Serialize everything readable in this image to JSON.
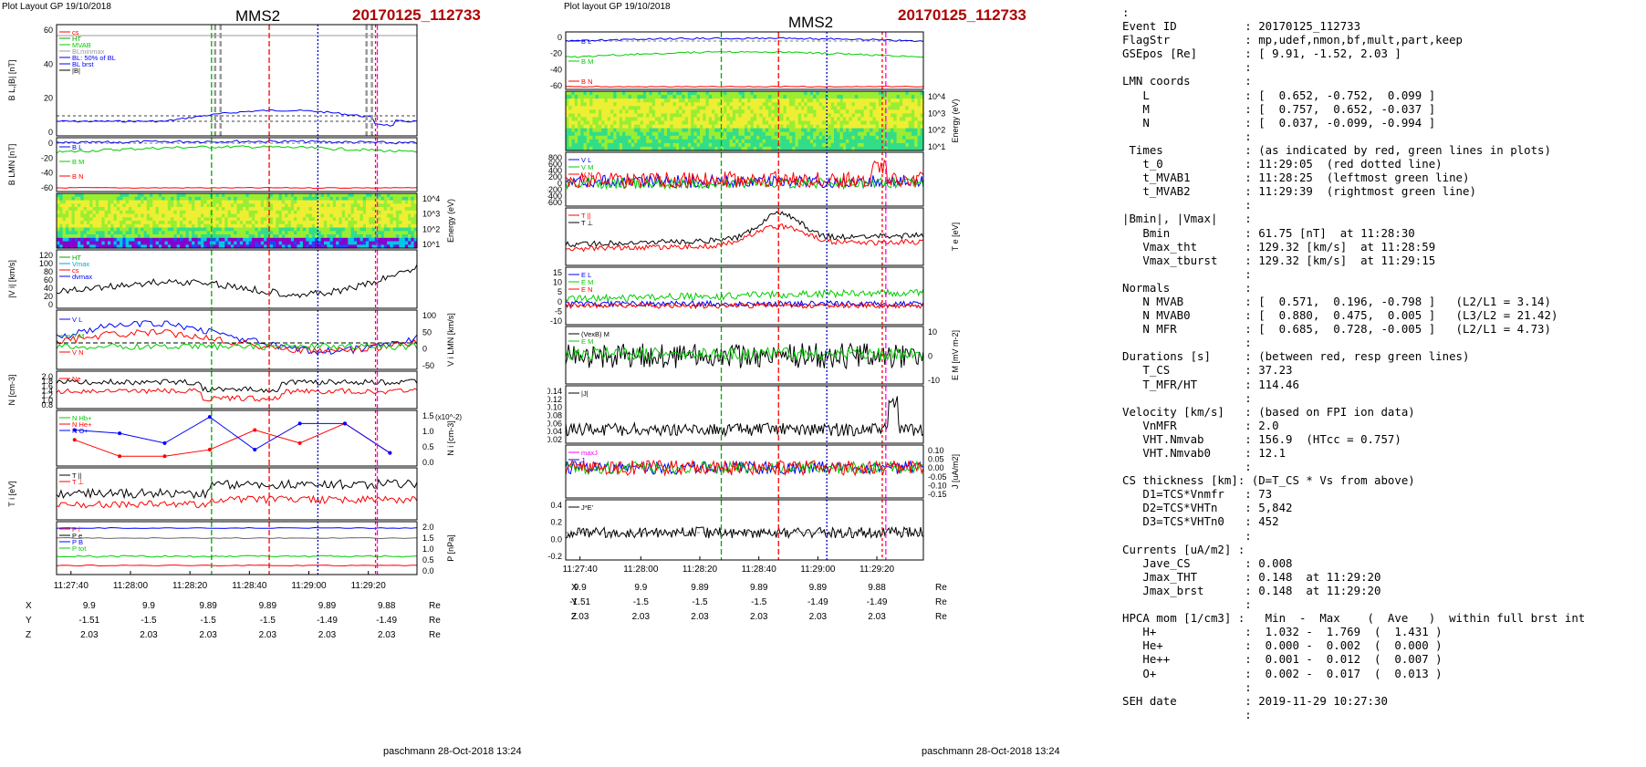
{
  "left": {
    "header": "Plot Layout GP 19/10/2018",
    "title": "MMS2",
    "event": "20170125_112733",
    "footer": "paschmann 28-Oct-2018 13:24",
    "time_ticks": [
      "11:27:40",
      "11:28:00",
      "11:28:20",
      "11:28:40",
      "11:29:00",
      "11:29:20"
    ],
    "coords": {
      "labels": [
        "X",
        "Y",
        "Z"
      ],
      "unit": "Re",
      "X": [
        "9.9",
        "9.9",
        "9.89",
        "9.89",
        "9.89",
        "9.88"
      ],
      "Y": [
        "-1.51",
        "-1.5",
        "-1.5",
        "-1.5",
        "-1.49",
        "-1.49"
      ],
      "Z": [
        "2.03",
        "2.03",
        "2.03",
        "2.03",
        "2.03",
        "2.03"
      ]
    },
    "panels": [
      {
        "ylabel": "B_L,|B| [nT]",
        "ticks": [
          "60",
          "40",
          "20",
          "0"
        ],
        "legend": [
          "cs",
          "HT",
          "MVAB",
          "BLminmax",
          "BL: 50% of BL",
          "BL_ brst",
          "|B|"
        ]
      },
      {
        "ylabel": "B_LMN [nT]",
        "ticks": [
          "0",
          "-20",
          "-40",
          "-60"
        ],
        "legend": [
          "B_L",
          "B_M",
          "B_N"
        ]
      },
      {
        "ylabel": "Energy (eV)",
        "ticks": [
          "10^4",
          "10^3",
          "10^2",
          "10^1"
        ],
        "legend": []
      },
      {
        "ylabel": "|V_i| [km/s]",
        "ticks": [
          "120",
          "100",
          "80",
          "60",
          "40",
          "20",
          "0"
        ],
        "legend": [
          "HT",
          "Vmax",
          "cs",
          "dvmax"
        ]
      },
      {
        "ylabel": "V_i LMN [km/s]",
        "ticks": [
          "100",
          "50",
          "0",
          "-50"
        ],
        "legend": [
          "V_L",
          "V_M",
          "V_N"
        ]
      },
      {
        "ylabel": "N [cm^-3]",
        "ticks": [
          "2.0",
          "1.8",
          "1.6",
          "1.4",
          "1.2",
          "1.0",
          "0.8"
        ],
        "legend": [
          "Ne"
        ]
      },
      {
        "ylabel": "N_i [cm^-3]",
        "ticks": [
          "1.5",
          "1.0",
          "0.5",
          "0.0"
        ],
        "legend": [
          "N_Hb+",
          "N_He+",
          "N_O+"
        ],
        "scale": "(x10^-2)"
      },
      {
        "ylabel": "T_i [eV]",
        "ticks": [],
        "legend": [
          "T_||",
          "T_⊥"
        ]
      },
      {
        "ylabel": "P [nPa]",
        "ticks": [
          "2.0",
          "1.5",
          "1.0",
          "0.5",
          "0.0"
        ],
        "legend": [
          "P_i",
          "P_e",
          "P_B",
          "P_tot"
        ]
      }
    ]
  },
  "middle": {
    "header": "Plot layout GP 19/10/2018",
    "title": "MMS2",
    "event": "20170125_112733",
    "footer": "paschmann 28-Oct-2018 13:24",
    "time_ticks": [
      "11:27:40",
      "11:28:00",
      "11:28:20",
      "11:28:40",
      "11:29:00",
      "11:29:20"
    ],
    "coords": {
      "labels": [
        "X",
        "Y",
        "Z"
      ],
      "unit": "Re",
      "X": [
        "9.9",
        "9.9",
        "9.89",
        "9.89",
        "9.89",
        "9.88"
      ],
      "Y": [
        "-1.51",
        "-1.5",
        "-1.5",
        "-1.5",
        "-1.49",
        "-1.49"
      ],
      "Z": [
        "2.03",
        "2.03",
        "2.03",
        "2.03",
        "2.03",
        "2.03"
      ]
    },
    "panels": [
      {
        "ylabel": "B_LMN [nT]",
        "ticks": [
          "0",
          "-20",
          "-40",
          "-60"
        ],
        "legend": [
          "B_L",
          "B_M",
          "B_N"
        ]
      },
      {
        "ylabel": "Energy (eV)",
        "ticks": [
          "10^4",
          "10^3",
          "10^2",
          "10^1"
        ],
        "legend": []
      },
      {
        "ylabel": "V_e LMN [km/s]",
        "ticks": [
          "800",
          "600",
          "400",
          "200",
          "0",
          "-200",
          "-400",
          "-600"
        ],
        "legend": [
          "V_L",
          "V_M",
          "V_N"
        ]
      },
      {
        "ylabel": "T_e [eV]",
        "ticks": [],
        "legend": [
          "T_||",
          "T_⊥"
        ]
      },
      {
        "ylabel": "E_LMN [mV m^-1]",
        "ticks": [
          "15",
          "10",
          "5",
          "0",
          "-5",
          "-10"
        ],
        "legend": [
          "E_L",
          "E_M",
          "E_N"
        ]
      },
      {
        "ylabel": "E_M [mV m^-2]",
        "ticks": [
          "10",
          "0",
          "-10"
        ],
        "legend": [
          "(VexB)_M",
          "E_M"
        ]
      },
      {
        "ylabel": "|J| [uA/m^2]",
        "ticks": [
          "0.14",
          "0.12",
          "0.10",
          "0.08",
          "0.06",
          "0.04",
          "0.02"
        ],
        "legend": [
          "|J|"
        ]
      },
      {
        "ylabel": "J [uA/m^2]",
        "ticks": [
          "0.10",
          "0.05",
          "0.00",
          "-0.05",
          "-0.10",
          "-0.15"
        ],
        "legend": [
          "maxJ",
          "J"
        ]
      },
      {
        "ylabel": "J*E' [nW m^-3]",
        "ticks": [
          "0.4",
          "0.2",
          "0.0",
          "-0.2"
        ],
        "legend": [
          "J*E'"
        ]
      }
    ]
  },
  "colors": {
    "L": "#0000ff",
    "M": "#00cc00",
    "N": "#ff0000",
    "black": "#000000",
    "gray": "#999999",
    "magenta": "#ff00ff",
    "green_line": "#00aa00",
    "red_line": "#ff0000",
    "blue_line": "#0000cc"
  },
  "info_lines": [
    ":",
    "Event ID          : 20170125_112733",
    "FlagStr           : mp,udef,nmon,bf,mult,part,keep",
    "GSEpos [Re]       : [ 9.91, -1.52, 2.03 ]",
    "                  :",
    "LMN coords        :",
    "   L              : [  0.652, -0.752,  0.099 ]",
    "   M              : [  0.757,  0.652, -0.037 ]",
    "   N              : [  0.037, -0.099, -0.994 ]",
    "                  :",
    " Times            : (as indicated by red, green lines in plots)",
    "   t_0            : 11:29:05  (red dotted line)",
    "   t_MVAB1        : 11:28:25  (leftmost green line)",
    "   t_MVAB2        : 11:29:39  (rightmost green line)",
    "                  :",
    "|Bmin|, |Vmax|    :",
    "   Bmin           : 61.75 [nT]  at 11:28:30",
    "   Vmax_tht       : 129.32 [km/s]  at 11:28:59",
    "   Vmax_tburst    : 129.32 [km/s]  at 11:29:15",
    "                  :",
    "Normals           :",
    "   N MVAB         : [  0.571,  0.196, -0.798 ]   (L2/L1 = 3.14)",
    "   N MVAB0        : [  0.880,  0.475,  0.005 ]   (L3/L2 = 21.42)",
    "   N MFR          : [  0.685,  0.728, -0.005 ]   (L2/L1 = 4.73)",
    "                  :",
    "Durations [s]     : (between red, resp green lines)",
    "   T_CS           : 37.23",
    "   T_MFR/HT       : 114.46",
    "                  :",
    "Velocity [km/s]   : (based on FPI ion data)",
    "   VnMFR          : 2.0",
    "   VHT.Nmvab      : 156.9  (HTcc = 0.757)",
    "   VHT.Nmvab0     : 12.1",
    "                  :",
    "CS thickness [km]: (D=T_CS * Vs from above)",
    "   D1=TCS*Vnmfr   : 73",
    "   D2=TCS*VHTn    : 5,842",
    "   D3=TCS*VHTn0   : 452",
    "                  :",
    "Currents [uA/m2] :",
    "   Jave_CS        : 0.008",
    "   Jmax_THT       : 0.148  at 11:29:20",
    "   Jmax_brst      : 0.148  at 11:29:20",
    "                  :",
    "HPCA mom [1/cm3] :   Min  -  Max    (  Ave   )  within full brst int",
    "   H+             :  1.032 -  1.769  (  1.431 )",
    "   He+            :  0.000 -  0.002  (  0.000 )",
    "   He++           :  0.001 -  0.012  (  0.007 )",
    "   O+             :  0.002 -  0.017  (  0.013 )",
    "                  :",
    "SEH date          : 2019-11-29 10:27:30",
    "                  :"
  ],
  "chart_data": [
    {
      "type": "line",
      "title": "MMS2 20170125_112733",
      "xlabel": "",
      "x_ticks": [
        "11:27:40",
        "11:28:00",
        "11:28:20",
        "11:28:40",
        "11:29:00",
        "11:29:20"
      ],
      "series": [
        {
          "name": "|B|",
          "values": [
            61,
            61,
            60,
            60,
            60,
            61,
            61,
            61
          ]
        },
        {
          "name": "BL_ brst",
          "values": [
            2,
            3,
            4,
            7,
            7,
            6,
            5,
            1
          ]
        },
        {
          "name": "Ne",
          "values": [
            1.6,
            1.5,
            1.5,
            1.2,
            1.3,
            1.4,
            1.4,
            1.7
          ]
        },
        {
          "name": "N_He+",
          "values": [
            0.8,
            0.3,
            0.3,
            0.5,
            1.1,
            0.7,
            1.3,
            0.4
          ]
        },
        {
          "name": "N_O+",
          "values": [
            1.1,
            1.0,
            0.7,
            1.5,
            0.5,
            1.3,
            1.3,
            0.4
          ]
        }
      ],
      "ylim": [
        0,
        65
      ]
    },
    {
      "type": "line",
      "title": "MMS2 20170125_112733",
      "xlabel": "",
      "x_ticks": [
        "11:27:40",
        "11:28:00",
        "11:28:20",
        "11:28:40",
        "11:29:00",
        "11:29:20"
      ],
      "series": [
        {
          "name": "B_L",
          "values": [
            0,
            0,
            2,
            3,
            4,
            3,
            2,
            0
          ]
        },
        {
          "name": "B_M",
          "values": [
            -20,
            -20,
            -15,
            -8,
            -6,
            -10,
            -15,
            -18
          ]
        },
        {
          "name": "B_N",
          "values": [
            -60,
            -60,
            -60,
            -60,
            -60,
            -60,
            -60,
            -60
          ]
        }
      ],
      "ylim": [
        -65,
        5
      ]
    }
  ]
}
